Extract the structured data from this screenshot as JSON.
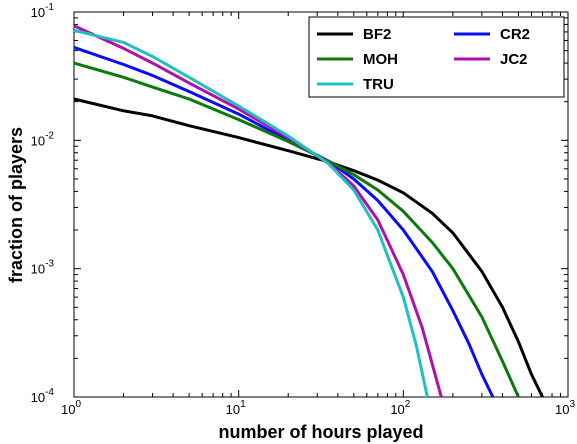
{
  "chart_data": {
    "type": "line",
    "xlabel": "number of hours played",
    "ylabel": "fraction of players",
    "xscale": "log",
    "yscale": "log",
    "xlim": [
      1,
      1000
    ],
    "ylim": [
      0.0001,
      0.1
    ],
    "grid": false,
    "legend_position": "top-right",
    "x_ticks": [
      {
        "base": "10",
        "exp": "0",
        "value": 1
      },
      {
        "base": "10",
        "exp": "1",
        "value": 10
      },
      {
        "base": "10",
        "exp": "2",
        "value": 100
      },
      {
        "base": "10",
        "exp": "3",
        "value": 1000
      }
    ],
    "y_ticks": [
      {
        "base": "10",
        "exp": "-4",
        "value": 0.0001
      },
      {
        "base": "10",
        "exp": "-3",
        "value": 0.001
      },
      {
        "base": "10",
        "exp": "-2",
        "value": 0.01
      },
      {
        "base": "10",
        "exp": "-1",
        "value": 0.1
      }
    ],
    "series": [
      {
        "name": "BF2",
        "color": "#000000",
        "x": [
          1,
          2,
          3,
          5,
          10,
          20,
          35,
          50,
          70,
          100,
          150,
          200,
          300,
          400,
          500,
          600,
          700
        ],
        "y": [
          0.021,
          0.017,
          0.0155,
          0.013,
          0.0105,
          0.0083,
          0.0068,
          0.0058,
          0.0049,
          0.0039,
          0.0027,
          0.0019,
          0.00095,
          0.0005,
          0.00027,
          0.00015,
          0.0001
        ]
      },
      {
        "name": "CR2",
        "color": "#0a0aff",
        "x": [
          1,
          2,
          3,
          5,
          10,
          20,
          35,
          50,
          70,
          100,
          150,
          200,
          250,
          300,
          350
        ],
        "y": [
          0.053,
          0.039,
          0.032,
          0.024,
          0.016,
          0.01,
          0.0069,
          0.005,
          0.0034,
          0.002,
          0.00095,
          0.00047,
          0.00026,
          0.00015,
          0.0001
        ]
      },
      {
        "name": "MOH",
        "color": "#0a7a0a",
        "x": [
          1,
          2,
          3,
          5,
          10,
          20,
          35,
          50,
          70,
          100,
          150,
          200,
          300,
          400,
          500
        ],
        "y": [
          0.04,
          0.031,
          0.026,
          0.021,
          0.0145,
          0.0098,
          0.0069,
          0.0054,
          0.0041,
          0.0028,
          0.0016,
          0.001,
          0.00042,
          0.00019,
          0.0001
        ]
      },
      {
        "name": "JC2",
        "color": "#b10eb1",
        "x": [
          1,
          2,
          3,
          5,
          10,
          20,
          35,
          50,
          70,
          100,
          130,
          150,
          170
        ],
        "y": [
          0.078,
          0.052,
          0.04,
          0.028,
          0.0175,
          0.0105,
          0.0067,
          0.0044,
          0.0024,
          0.0009,
          0.00035,
          0.00018,
          0.0001
        ]
      },
      {
        "name": "TRU",
        "color": "#20c0c0",
        "x": [
          1,
          2,
          3,
          5,
          10,
          20,
          35,
          50,
          70,
          100,
          120,
          140
        ],
        "y": [
          0.072,
          0.058,
          0.045,
          0.031,
          0.0185,
          0.0108,
          0.0066,
          0.0041,
          0.002,
          0.0006,
          0.00025,
          0.0001
        ]
      }
    ]
  }
}
